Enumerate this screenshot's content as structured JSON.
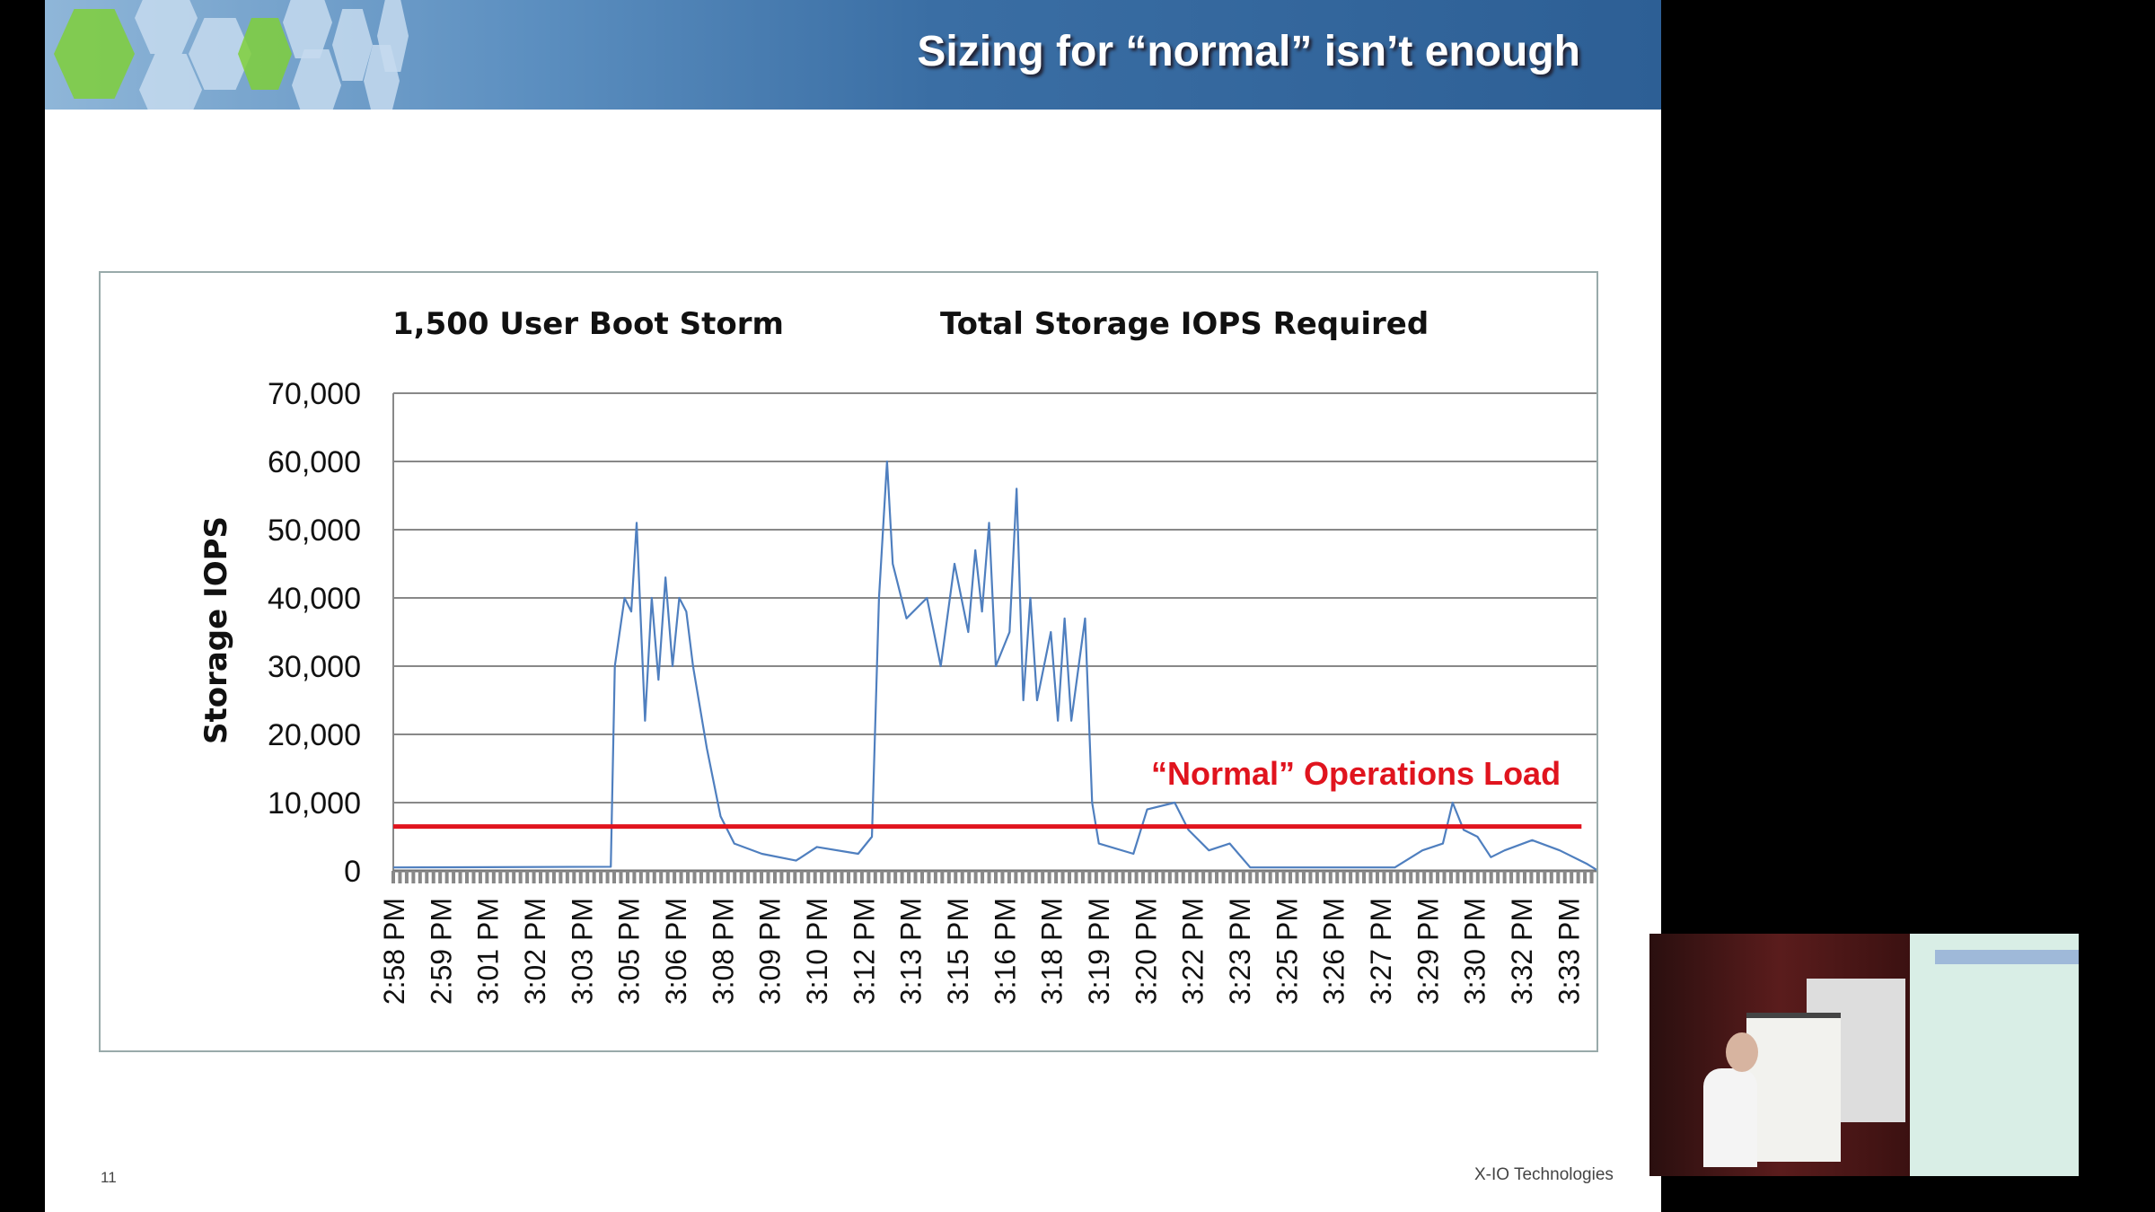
{
  "slide": {
    "title": "Sizing for “normal” isn’t enough",
    "page_number": "11",
    "brand": "X-IO Technologies"
  },
  "chart_data": {
    "type": "line",
    "title_left": "1,500 User Boot Storm",
    "title_right": "Total Storage IOPS Required",
    "ylabel": "Storage IOPS",
    "xlabel": "",
    "ylim": [
      0,
      70000
    ],
    "yticks": [
      "0",
      "10,000",
      "20,000",
      "30,000",
      "40,000",
      "50,000",
      "60,000",
      "70,000"
    ],
    "ytick_values": [
      0,
      10000,
      20000,
      30000,
      40000,
      50000,
      60000,
      70000
    ],
    "grid": true,
    "x_units": "minutes after 2:58 PM",
    "xlim": [
      0,
      35.9
    ],
    "categories": [
      "2:58 PM",
      "2:59 PM",
      "3:01 PM",
      "3:02 PM",
      "3:03 PM",
      "3:05 PM",
      "3:06 PM",
      "3:08 PM",
      "3:09 PM",
      "3:10 PM",
      "3:12 PM",
      "3:13 PM",
      "3:15 PM",
      "3:16 PM",
      "3:18 PM",
      "3:19 PM",
      "3:20 PM",
      "3:22 PM",
      "3:23 PM",
      "3:25 PM",
      "3:26 PM",
      "3:27 PM",
      "3:29 PM",
      "3:30 PM",
      "3:32 PM",
      "3:33 PM"
    ],
    "series": [
      {
        "name": "Total Storage IOPS",
        "color": "#4f7fbf",
        "x": [
          0,
          6.48,
          6.6,
          6.89,
          7.09,
          7.25,
          7.5,
          7.7,
          7.9,
          8.11,
          8.32,
          8.52,
          8.73,
          8.93,
          9.34,
          9.75,
          10.16,
          10.98,
          12.0,
          12.62,
          13.85,
          14.26,
          14.47,
          14.71,
          14.88,
          15.29,
          15.9,
          16.31,
          16.72,
          17.13,
          17.34,
          17.54,
          17.75,
          17.95,
          18.36,
          18.57,
          18.77,
          18.98,
          19.18,
          19.59,
          19.8,
          20.0,
          20.2,
          20.61,
          20.82,
          21.02,
          22.05,
          22.46,
          23.28,
          23.69,
          24.3,
          24.92,
          25.53,
          29.84,
          30.66,
          31.27,
          31.56,
          31.89,
          32.3,
          32.7,
          33.11,
          33.93,
          34.75,
          35.57,
          35.9
        ],
        "y": [
          500,
          600,
          30000,
          40000,
          38000,
          51000,
          22000,
          40000,
          28000,
          43000,
          30000,
          40000,
          38000,
          30000,
          18000,
          8000,
          4000,
          2500,
          1500,
          3500,
          2500,
          5000,
          40000,
          60000,
          45000,
          37000,
          40000,
          30000,
          45000,
          35000,
          47000,
          38000,
          51000,
          30000,
          35000,
          56000,
          25000,
          40000,
          25000,
          35000,
          22000,
          37000,
          22000,
          37000,
          10000,
          4000,
          2500,
          9000,
          10000,
          6000,
          3000,
          4000,
          500,
          500,
          3000,
          4000,
          10000,
          6000,
          5000,
          2000,
          3000,
          4500,
          3000,
          1000,
          0
        ]
      },
      {
        "name": "“Normal” Operations Load",
        "color": "#e0141e",
        "x": [
          0,
          35.4
        ],
        "y": [
          6500,
          6500
        ]
      }
    ],
    "annotation": "“Normal” Operations Load",
    "annotation_color": "#e0141e"
  }
}
